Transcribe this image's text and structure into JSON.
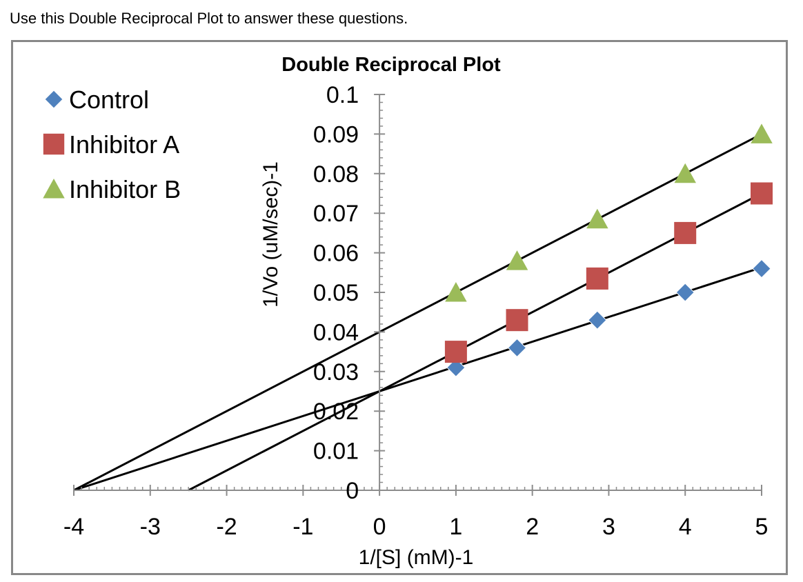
{
  "prompt": "Use this Double Reciprocal Plot to answer these questions.",
  "chart_data": {
    "type": "scatter",
    "title": "Double Reciprocal Plot",
    "xlabel": "1/[S] (mM)-1",
    "ylabel": "1/Vo (uM/sec)-1",
    "xlim": [
      -4,
      5
    ],
    "ylim": [
      0,
      0.1
    ],
    "x_ticks": [
      "-4",
      "-3",
      "-2",
      "-1",
      "0",
      "1",
      "2",
      "3",
      "4",
      "5"
    ],
    "y_ticks": [
      "0",
      "0.01",
      "0.02",
      "0.03",
      "0.04",
      "0.05",
      "0.06",
      "0.07",
      "0.08",
      "0.09",
      "0.1"
    ],
    "grid": false,
    "legend_position": "top-left",
    "series": [
      {
        "name": "Control",
        "marker": "diamond",
        "color": "#4F81BD",
        "points": [
          [
            1,
            0.031
          ],
          [
            1.8,
            0.036
          ],
          [
            2.85,
            0.043
          ],
          [
            4,
            0.05
          ],
          [
            5,
            0.056
          ]
        ],
        "trendline": [
          [
            -4,
            0
          ],
          [
            5,
            0.0563
          ]
        ]
      },
      {
        "name": "Inhibitor A",
        "marker": "square",
        "color": "#C0504D",
        "points": [
          [
            1,
            0.035
          ],
          [
            1.8,
            0.043
          ],
          [
            2.85,
            0.0535
          ],
          [
            4,
            0.065
          ],
          [
            5,
            0.075
          ]
        ],
        "trendline": [
          [
            -2.5,
            0
          ],
          [
            5,
            0.075
          ]
        ]
      },
      {
        "name": "Inhibitor B",
        "marker": "triangle",
        "color": "#9BBB59",
        "points": [
          [
            1,
            0.05
          ],
          [
            1.8,
            0.058
          ],
          [
            2.85,
            0.0685
          ],
          [
            4,
            0.08
          ],
          [
            5,
            0.09
          ]
        ],
        "trendline": [
          [
            -4,
            0
          ],
          [
            5,
            0.09
          ]
        ]
      }
    ]
  }
}
